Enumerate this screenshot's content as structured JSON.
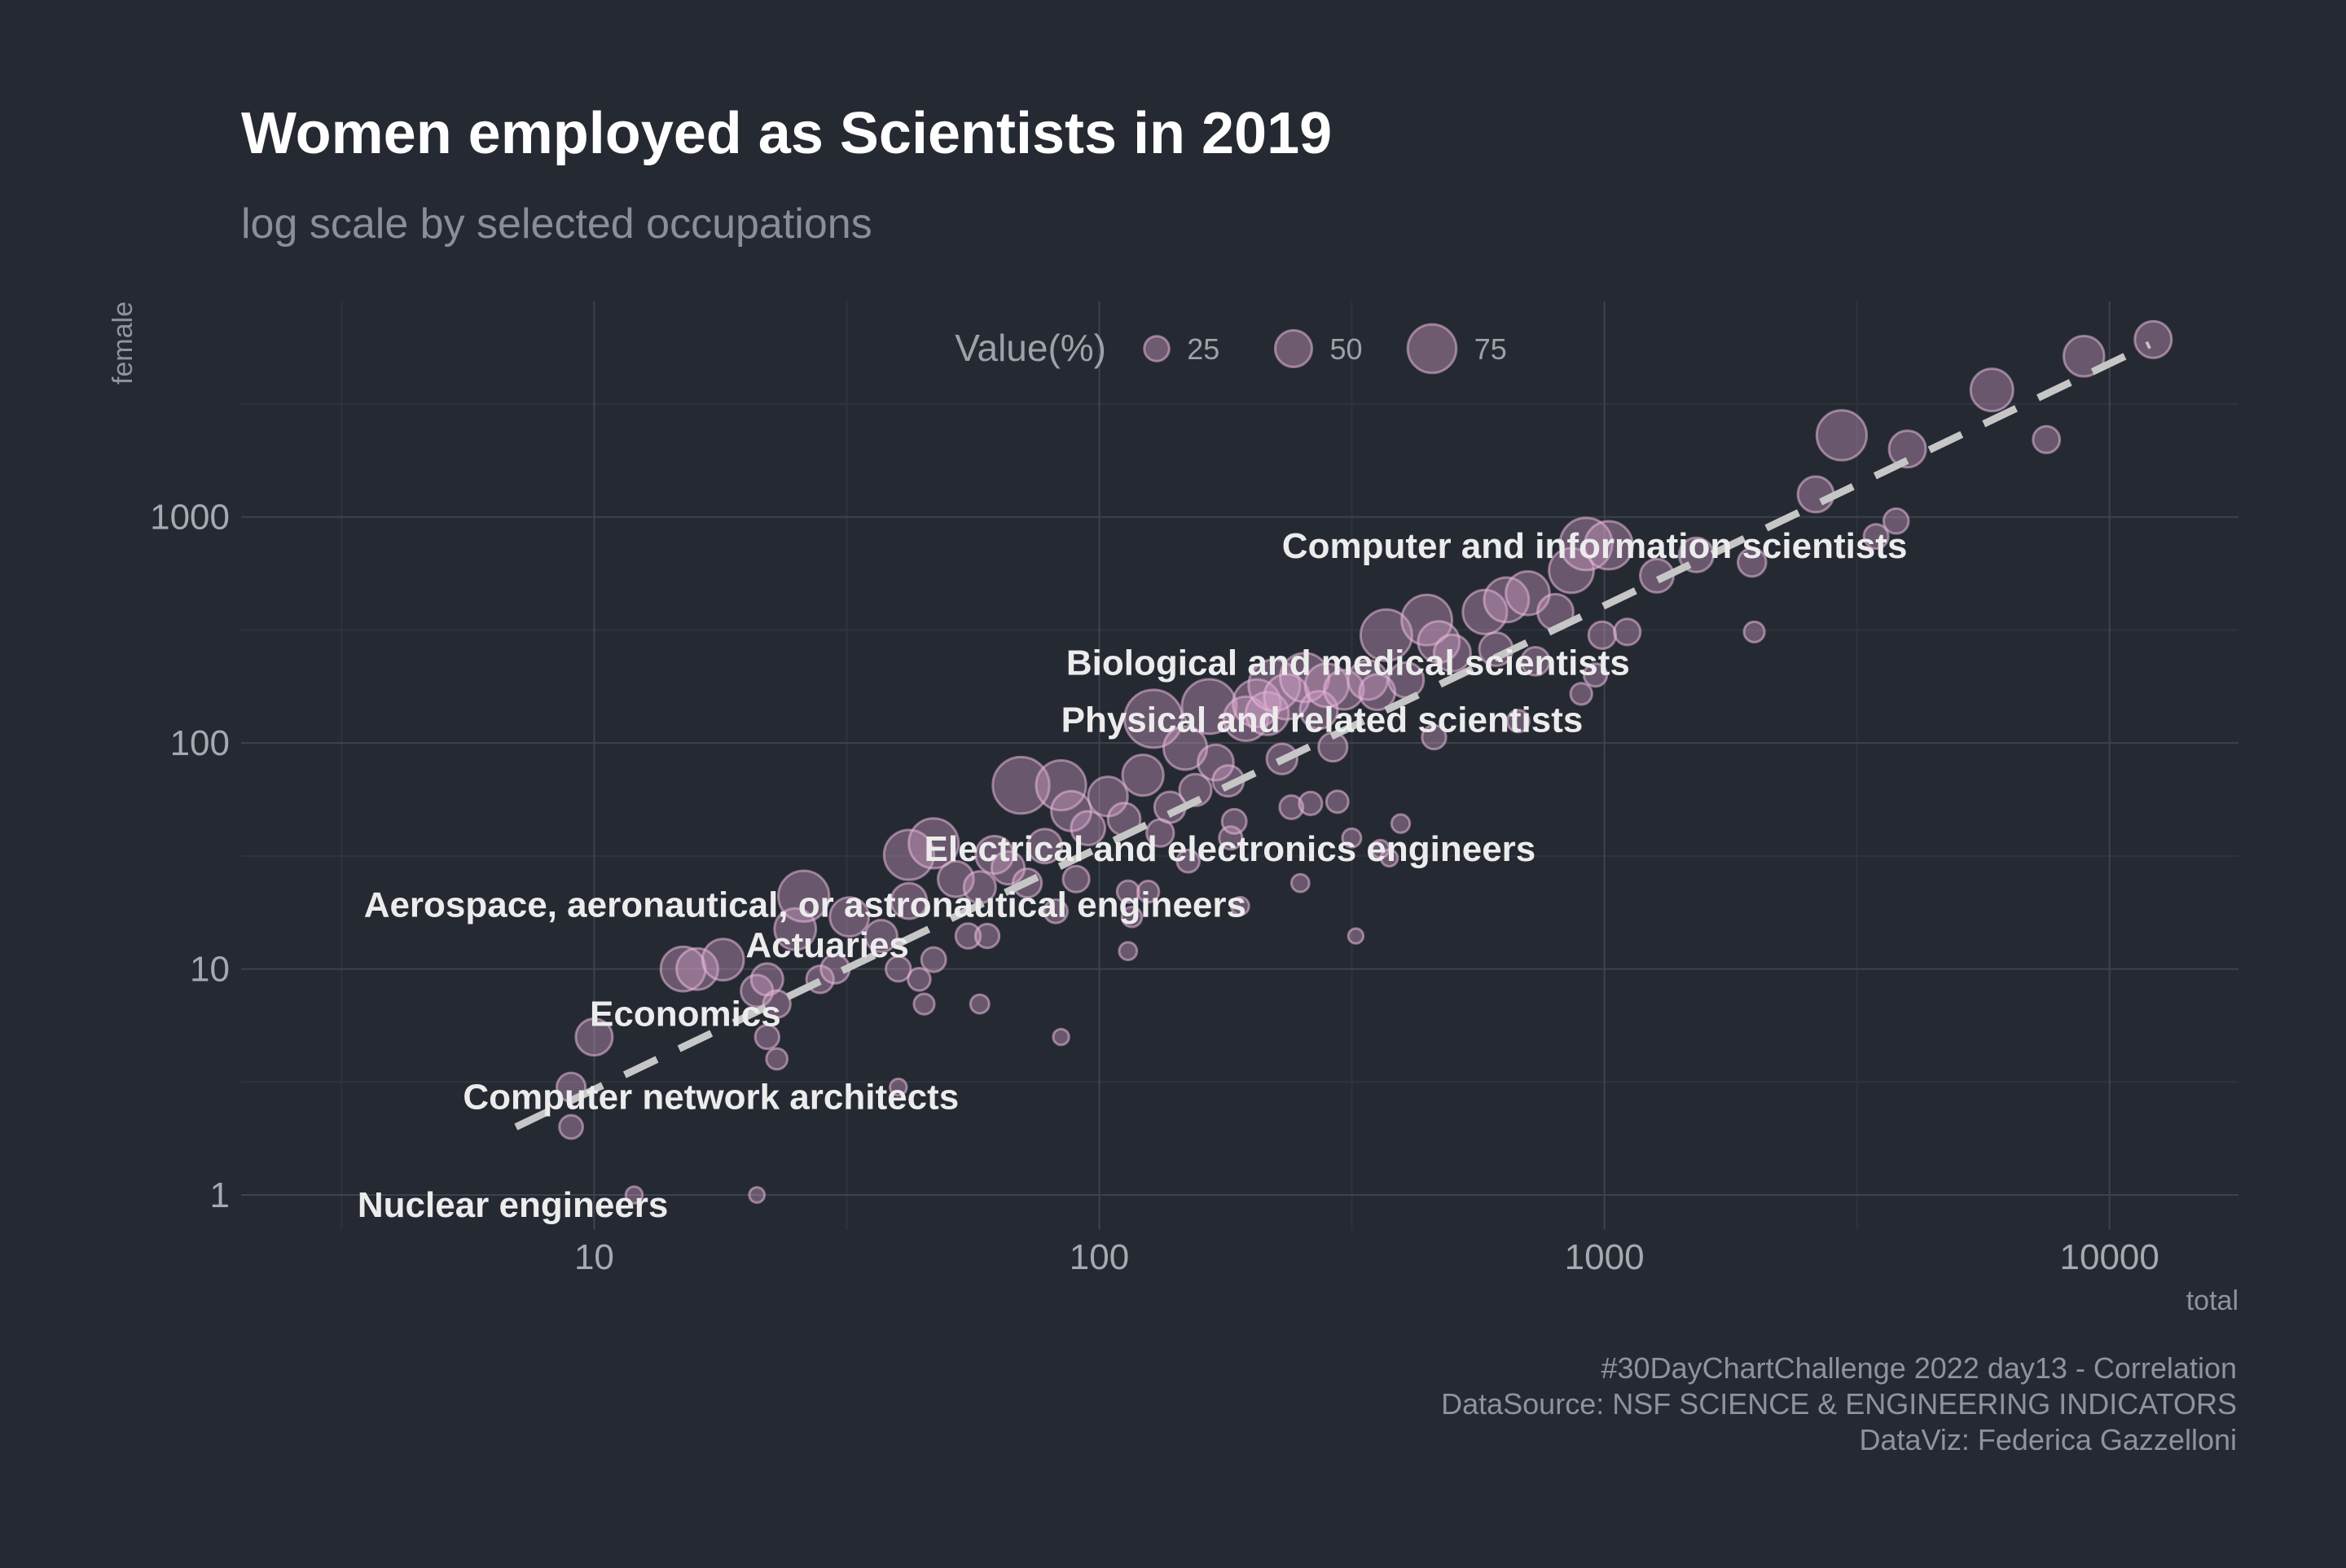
{
  "chart_data": {
    "type": "scatter",
    "title": "Women employed as Scientists in 2019",
    "subtitle": "log scale by selected occupations",
    "xlabel": "total",
    "ylabel": "female",
    "x_scale": "log10",
    "y_scale": "log10",
    "x_ticks": [
      10,
      100,
      1000,
      10000
    ],
    "x_tick_labels": [
      "10",
      "100",
      "1000",
      "10000"
    ],
    "y_ticks": [
      1,
      10,
      100,
      1000
    ],
    "y_tick_labels": [
      "1",
      "10",
      "100",
      "1000"
    ],
    "xlim": [
      2.0,
      18000
    ],
    "ylim": [
      0.7,
      9000
    ],
    "grid": true,
    "legend": {
      "title": "Value(%)",
      "placement": "top-center",
      "entries": [
        {
          "label": "25",
          "value": 25
        },
        {
          "label": "50",
          "value": 50
        },
        {
          "label": "75",
          "value": 75
        }
      ]
    },
    "trend_line": {
      "style": "dashed",
      "from": [
        7,
        2
      ],
      "to": [
        12000,
        5800
      ]
    },
    "points": [
      {
        "x": 12,
        "y": 1,
        "pct": 8
      },
      {
        "x": 21,
        "y": 1,
        "pct": 5
      },
      {
        "x": 9,
        "y": 2,
        "pct": 22
      },
      {
        "x": 9,
        "y": 3,
        "pct": 33
      },
      {
        "x": 10,
        "y": 5,
        "pct": 50
      },
      {
        "x": 40,
        "y": 3,
        "pct": 8
      },
      {
        "x": 22,
        "y": 5,
        "pct": 23
      },
      {
        "x": 23,
        "y": 4,
        "pct": 17
      },
      {
        "x": 15,
        "y": 10,
        "pct": 67
      },
      {
        "x": 16,
        "y": 10,
        "pct": 60
      },
      {
        "x": 18,
        "y": 11,
        "pct": 60
      },
      {
        "x": 21,
        "y": 8,
        "pct": 40
      },
      {
        "x": 22,
        "y": 9,
        "pct": 40
      },
      {
        "x": 23,
        "y": 7,
        "pct": 30
      },
      {
        "x": 25,
        "y": 15,
        "pct": 60
      },
      {
        "x": 26,
        "y": 21,
        "pct": 80
      },
      {
        "x": 28,
        "y": 9,
        "pct": 30
      },
      {
        "x": 30,
        "y": 10,
        "pct": 33
      },
      {
        "x": 32,
        "y": 17,
        "pct": 55
      },
      {
        "x": 37,
        "y": 14,
        "pct": 40
      },
      {
        "x": 40,
        "y": 10,
        "pct": 25
      },
      {
        "x": 42,
        "y": 20,
        "pct": 48
      },
      {
        "x": 44,
        "y": 9,
        "pct": 20
      },
      {
        "x": 45,
        "y": 7,
        "pct": 16
      },
      {
        "x": 47,
        "y": 11,
        "pct": 24
      },
      {
        "x": 42,
        "y": 32,
        "pct": 78
      },
      {
        "x": 47,
        "y": 36,
        "pct": 78
      },
      {
        "x": 52,
        "y": 25,
        "pct": 48
      },
      {
        "x": 55,
        "y": 14,
        "pct": 25
      },
      {
        "x": 58,
        "y": 7,
        "pct": 12
      },
      {
        "x": 58,
        "y": 23,
        "pct": 40
      },
      {
        "x": 60,
        "y": 14,
        "pct": 23
      },
      {
        "x": 62,
        "y": 32,
        "pct": 52
      },
      {
        "x": 66,
        "y": 28,
        "pct": 42
      },
      {
        "x": 70,
        "y": 65,
        "pct": 92
      },
      {
        "x": 72,
        "y": 24,
        "pct": 33
      },
      {
        "x": 78,
        "y": 35,
        "pct": 45
      },
      {
        "x": 82,
        "y": 18,
        "pct": 22
      },
      {
        "x": 84,
        "y": 5,
        "pct": 6
      },
      {
        "x": 84,
        "y": 65,
        "pct": 78
      },
      {
        "x": 88,
        "y": 50,
        "pct": 57
      },
      {
        "x": 90,
        "y": 25,
        "pct": 28
      },
      {
        "x": 95,
        "y": 42,
        "pct": 44
      },
      {
        "x": 104,
        "y": 58,
        "pct": 56
      },
      {
        "x": 112,
        "y": 46,
        "pct": 41
      },
      {
        "x": 114,
        "y": 22,
        "pct": 19
      },
      {
        "x": 114,
        "y": 12,
        "pct": 10
      },
      {
        "x": 116,
        "y": 17,
        "pct": 15
      },
      {
        "x": 122,
        "y": 72,
        "pct": 59
      },
      {
        "x": 125,
        "y": 22,
        "pct": 18
      },
      {
        "x": 128,
        "y": 128,
        "pct": 95
      },
      {
        "x": 132,
        "y": 40,
        "pct": 30
      },
      {
        "x": 138,
        "y": 52,
        "pct": 38
      },
      {
        "x": 148,
        "y": 95,
        "pct": 64
      },
      {
        "x": 150,
        "y": 30,
        "pct": 20
      },
      {
        "x": 155,
        "y": 62,
        "pct": 40
      },
      {
        "x": 165,
        "y": 145,
        "pct": 88
      },
      {
        "x": 170,
        "y": 82,
        "pct": 48
      },
      {
        "x": 180,
        "y": 68,
        "pct": 38
      },
      {
        "x": 182,
        "y": 38,
        "pct": 21
      },
      {
        "x": 185,
        "y": 45,
        "pct": 24
      },
      {
        "x": 190,
        "y": 19,
        "pct": 10
      },
      {
        "x": 195,
        "y": 128,
        "pct": 66
      },
      {
        "x": 205,
        "y": 150,
        "pct": 73
      },
      {
        "x": 215,
        "y": 135,
        "pct": 63
      },
      {
        "x": 222,
        "y": 180,
        "pct": 81
      },
      {
        "x": 230,
        "y": 85,
        "pct": 37
      },
      {
        "x": 235,
        "y": 160,
        "pct": 68
      },
      {
        "x": 240,
        "y": 52,
        "pct": 22
      },
      {
        "x": 250,
        "y": 24,
        "pct": 10
      },
      {
        "x": 255,
        "y": 195,
        "pct": 76
      },
      {
        "x": 262,
        "y": 54,
        "pct": 21
      },
      {
        "x": 272,
        "y": 140,
        "pct": 52
      },
      {
        "x": 282,
        "y": 180,
        "pct": 64
      },
      {
        "x": 290,
        "y": 96,
        "pct": 33
      },
      {
        "x": 296,
        "y": 55,
        "pct": 19
      },
      {
        "x": 305,
        "y": 172,
        "pct": 56
      },
      {
        "x": 316,
        "y": 38,
        "pct": 12
      },
      {
        "x": 322,
        "y": 14,
        "pct": 4
      },
      {
        "x": 340,
        "y": 190,
        "pct": 56
      },
      {
        "x": 355,
        "y": 168,
        "pct": 48
      },
      {
        "x": 360,
        "y": 34,
        "pct": 10
      },
      {
        "x": 370,
        "y": 300,
        "pct": 81
      },
      {
        "x": 375,
        "y": 31,
        "pct": 8
      },
      {
        "x": 395,
        "y": 44,
        "pct": 11
      },
      {
        "x": 405,
        "y": 190,
        "pct": 47
      },
      {
        "x": 445,
        "y": 350,
        "pct": 79
      },
      {
        "x": 460,
        "y": 106,
        "pct": 23
      },
      {
        "x": 470,
        "y": 280,
        "pct": 60
      },
      {
        "x": 500,
        "y": 250,
        "pct": 50
      },
      {
        "x": 580,
        "y": 380,
        "pct": 66
      },
      {
        "x": 610,
        "y": 260,
        "pct": 43
      },
      {
        "x": 640,
        "y": 430,
        "pct": 67
      },
      {
        "x": 675,
        "y": 125,
        "pct": 19
      },
      {
        "x": 705,
        "y": 460,
        "pct": 65
      },
      {
        "x": 730,
        "y": 230,
        "pct": 32
      },
      {
        "x": 800,
        "y": 380,
        "pct": 48
      },
      {
        "x": 860,
        "y": 580,
        "pct": 67
      },
      {
        "x": 900,
        "y": 165,
        "pct": 18
      },
      {
        "x": 920,
        "y": 760,
        "pct": 83
      },
      {
        "x": 960,
        "y": 200,
        "pct": 21
      },
      {
        "x": 990,
        "y": 300,
        "pct": 30
      },
      {
        "x": 1020,
        "y": 750,
        "pct": 74
      },
      {
        "x": 1110,
        "y": 310,
        "pct": 28
      },
      {
        "x": 1270,
        "y": 550,
        "pct": 43
      },
      {
        "x": 1520,
        "y": 680,
        "pct": 45
      },
      {
        "x": 1960,
        "y": 630,
        "pct": 32
      },
      {
        "x": 1980,
        "y": 310,
        "pct": 16
      },
      {
        "x": 2620,
        "y": 1260,
        "pct": 48
      },
      {
        "x": 2950,
        "y": 2300,
        "pct": 78
      },
      {
        "x": 3450,
        "y": 820,
        "pct": 24
      },
      {
        "x": 3780,
        "y": 960,
        "pct": 25
      },
      {
        "x": 3980,
        "y": 2000,
        "pct": 50
      },
      {
        "x": 5850,
        "y": 3650,
        "pct": 62
      },
      {
        "x": 7500,
        "y": 2200,
        "pct": 29
      },
      {
        "x": 8900,
        "y": 5150,
        "pct": 58
      },
      {
        "x": 12200,
        "y": 6100,
        "pct": 50
      }
    ],
    "annotations": [
      {
        "text": "Computer and information scientists",
        "x": 230,
        "y": 660,
        "anchor": "start"
      },
      {
        "text": "Biological and medical scientists",
        "x": 86,
        "y": 200,
        "anchor": "start"
      },
      {
        "text": "Physical and related scientists",
        "x": 84,
        "y": 112,
        "anchor": "start"
      },
      {
        "text": "Electrical and electronics engineers",
        "x": 45,
        "y": 30,
        "anchor": "start"
      },
      {
        "text": "Aerospace, aeronautical, or astronautical engineers",
        "x": 3.5,
        "y": 17,
        "anchor": "start"
      },
      {
        "text": "Actuaries",
        "x": 42,
        "y": 11.3,
        "anchor": "end"
      },
      {
        "text": "Economics",
        "x": 9.8,
        "y": 5.6,
        "anchor": "start"
      },
      {
        "text": "Computer network architects",
        "x": 5.5,
        "y": 2.4,
        "anchor": "start"
      },
      {
        "text": "Nuclear engineers",
        "x": 3.4,
        "y": 0.8,
        "anchor": "start"
      }
    ],
    "caption": [
      "#30DayChartChallenge 2022 day13 - Correlation",
      "DataSource: NSF SCIENCE & ENGINEERING INDICATORS",
      "DataViz: Federica Gazzelloni"
    ]
  }
}
